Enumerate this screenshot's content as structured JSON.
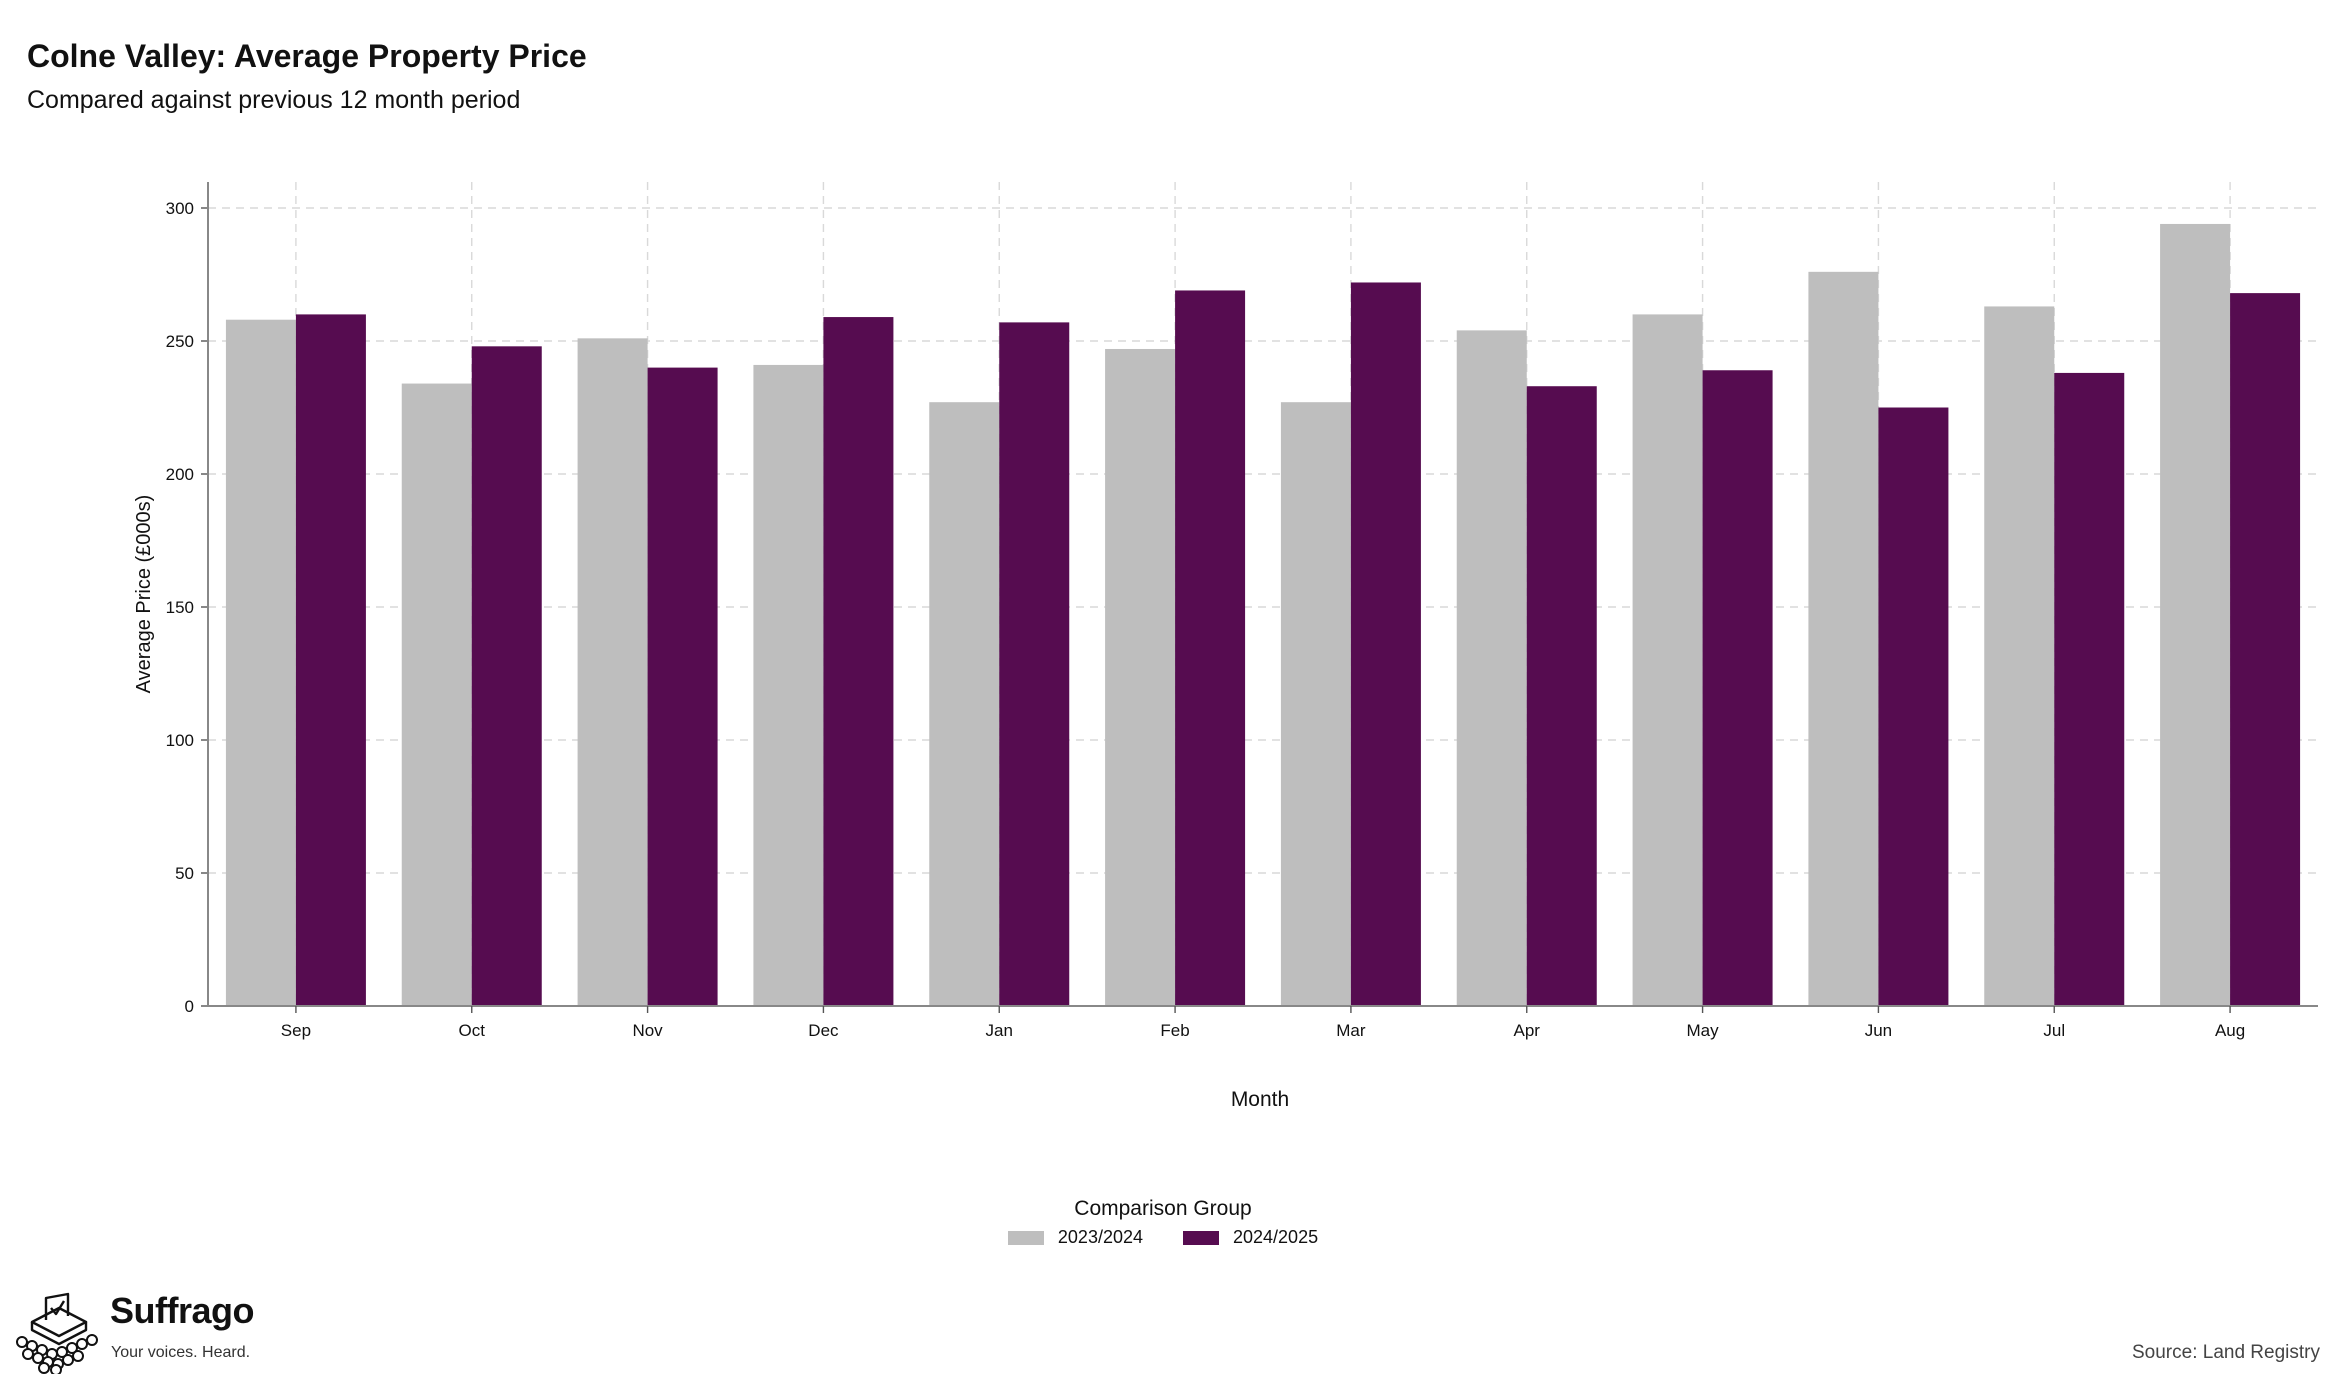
{
  "header": {
    "title": "Colne Valley: Average Property Price",
    "subtitle": "Compared against previous 12 month period"
  },
  "legend": {
    "title": "Comparison Group",
    "items": [
      {
        "label": "2023/2024",
        "color": "#bebebe"
      },
      {
        "label": "2024/2025",
        "color": "#560c50"
      }
    ]
  },
  "footer": {
    "brand": "Suffrago",
    "tagline": "Your voices. Heard.",
    "source": "Source: Land Registry"
  },
  "chart_data": {
    "type": "bar",
    "xlabel": "Month",
    "ylabel": "Average Price (£000s)",
    "ylim": [
      0,
      300
    ],
    "yticks": [
      0,
      50,
      100,
      150,
      200,
      250,
      300
    ],
    "grid": true,
    "categories": [
      "Sep",
      "Oct",
      "Nov",
      "Dec",
      "Jan",
      "Feb",
      "Mar",
      "Apr",
      "May",
      "Jun",
      "Jul",
      "Aug"
    ],
    "series": [
      {
        "name": "2023/2024",
        "color": "#bebebe",
        "values": [
          258,
          234,
          251,
          241,
          227,
          247,
          227,
          254,
          260,
          276,
          263,
          294
        ]
      },
      {
        "name": "2024/2025",
        "color": "#560c50",
        "values": [
          260,
          248,
          240,
          259,
          257,
          269,
          272,
          233,
          239,
          225,
          238,
          268
        ]
      }
    ]
  }
}
